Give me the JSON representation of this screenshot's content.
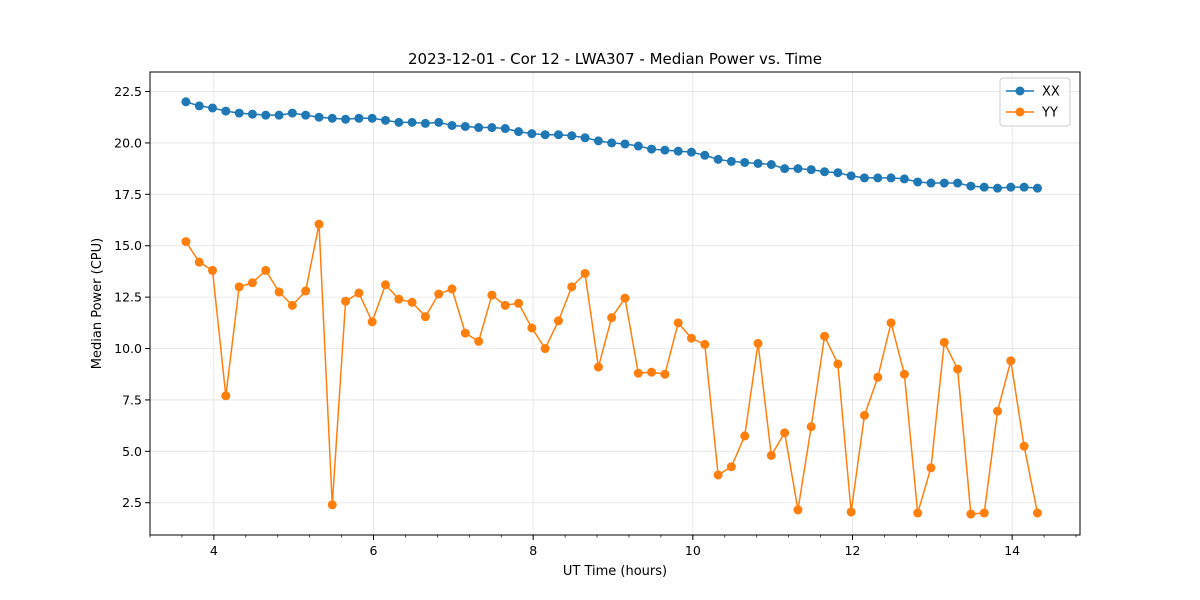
{
  "chart_data": {
    "type": "line",
    "title": "2023-12-01 - Cor 12 - LWA307 - Median Power vs. Time",
    "xlabel": "UT Time (hours)",
    "ylabel": "Median Power (CPU)",
    "xlim": [
      3.2,
      14.85
    ],
    "ylim": [
      0.93,
      23.45
    ],
    "xticks": [
      4,
      6,
      8,
      10,
      12,
      14
    ],
    "xtick_labels": [
      "4",
      "6",
      "8",
      "10",
      "12",
      "14"
    ],
    "x_minor_tick_step": 0.4,
    "yticks": [
      2.5,
      5.0,
      7.5,
      10.0,
      12.5,
      15.0,
      17.5,
      20.0,
      22.5
    ],
    "ytick_labels": [
      "2.5",
      "5.0",
      "7.5",
      "10.0",
      "12.5",
      "15.0",
      "17.5",
      "20.0",
      "22.5"
    ],
    "grid": true,
    "legend_position": "top-right",
    "x": [
      3.65,
      3.817,
      3.983,
      4.15,
      4.317,
      4.483,
      4.65,
      4.817,
      4.983,
      5.15,
      5.317,
      5.483,
      5.65,
      5.817,
      5.983,
      6.15,
      6.317,
      6.483,
      6.65,
      6.817,
      6.983,
      7.15,
      7.317,
      7.483,
      7.65,
      7.817,
      7.983,
      8.15,
      8.317,
      8.483,
      8.65,
      8.817,
      8.983,
      9.15,
      9.317,
      9.483,
      9.65,
      9.817,
      9.983,
      10.15,
      10.317,
      10.483,
      10.65,
      10.817,
      10.983,
      11.15,
      11.317,
      11.483,
      11.65,
      11.817,
      11.983,
      12.15,
      12.317,
      12.483,
      12.65,
      12.817,
      12.983,
      13.15,
      13.317,
      13.483,
      13.65,
      13.817,
      13.983,
      14.15,
      14.317
    ],
    "series": [
      {
        "name": "XX",
        "color": "#1f77b4",
        "values": [
          22.0,
          21.8,
          21.7,
          21.55,
          21.45,
          21.4,
          21.35,
          21.35,
          21.45,
          21.35,
          21.25,
          21.2,
          21.15,
          21.2,
          21.2,
          21.1,
          21.0,
          21.0,
          20.95,
          21.0,
          20.85,
          20.8,
          20.75,
          20.75,
          20.7,
          20.55,
          20.45,
          20.4,
          20.4,
          20.35,
          20.25,
          20.1,
          20.0,
          19.95,
          19.85,
          19.7,
          19.65,
          19.6,
          19.55,
          19.4,
          19.2,
          19.1,
          19.05,
          19.0,
          18.95,
          18.75,
          18.75,
          18.7,
          18.6,
          18.55,
          18.4,
          18.3,
          18.3,
          18.3,
          18.25,
          18.1,
          18.05,
          18.05,
          18.05,
          17.9,
          17.85,
          17.8,
          17.85,
          17.85,
          17.8
        ]
      },
      {
        "name": "YY",
        "color": "#ff7f0e",
        "values": [
          15.2,
          14.2,
          13.8,
          7.7,
          13.0,
          13.2,
          13.8,
          12.75,
          12.1,
          12.8,
          16.05,
          2.4,
          12.3,
          12.7,
          11.3,
          13.1,
          12.4,
          12.25,
          11.55,
          12.65,
          12.9,
          10.75,
          10.35,
          12.6,
          12.1,
          12.2,
          11.0,
          10.0,
          11.35,
          13.0,
          13.65,
          9.1,
          11.5,
          12.45,
          8.8,
          8.85,
          8.75,
          11.25,
          10.5,
          10.2,
          3.85,
          4.25,
          5.75,
          10.25,
          4.8,
          5.9,
          2.15,
          6.2,
          10.6,
          9.25,
          2.05,
          6.75,
          8.6,
          11.25,
          8.75,
          2.0,
          4.2,
          10.3,
          9.0,
          1.95,
          2.0,
          6.95,
          9.4,
          5.25,
          2.0
        ]
      }
    ]
  }
}
